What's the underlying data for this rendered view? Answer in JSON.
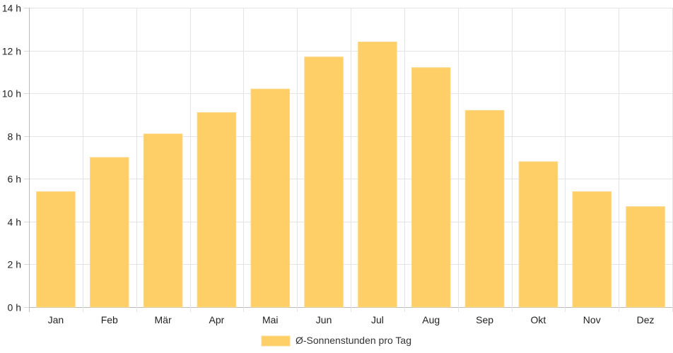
{
  "chart_data": {
    "type": "bar",
    "categories": [
      "Jan",
      "Feb",
      "Mär",
      "Apr",
      "Mai",
      "Jun",
      "Jul",
      "Aug",
      "Sep",
      "Okt",
      "Nov",
      "Dez"
    ],
    "series": [
      {
        "name": "Ø-Sonnenstunden pro Tag",
        "values": [
          5.4,
          7.0,
          8.1,
          9.1,
          10.2,
          11.7,
          12.4,
          11.2,
          9.2,
          6.8,
          5.4,
          4.7
        ],
        "color": "#fecf66",
        "border_color": "#fdd98a"
      }
    ],
    "ylim": [
      0,
      14
    ],
    "y_ticks": [
      0,
      2,
      4,
      6,
      8,
      10,
      12,
      14
    ],
    "y_tick_suffix": " h",
    "grid": true,
    "legend": {
      "position": "bottom"
    },
    "title": "",
    "xlabel": "",
    "ylabel": ""
  }
}
